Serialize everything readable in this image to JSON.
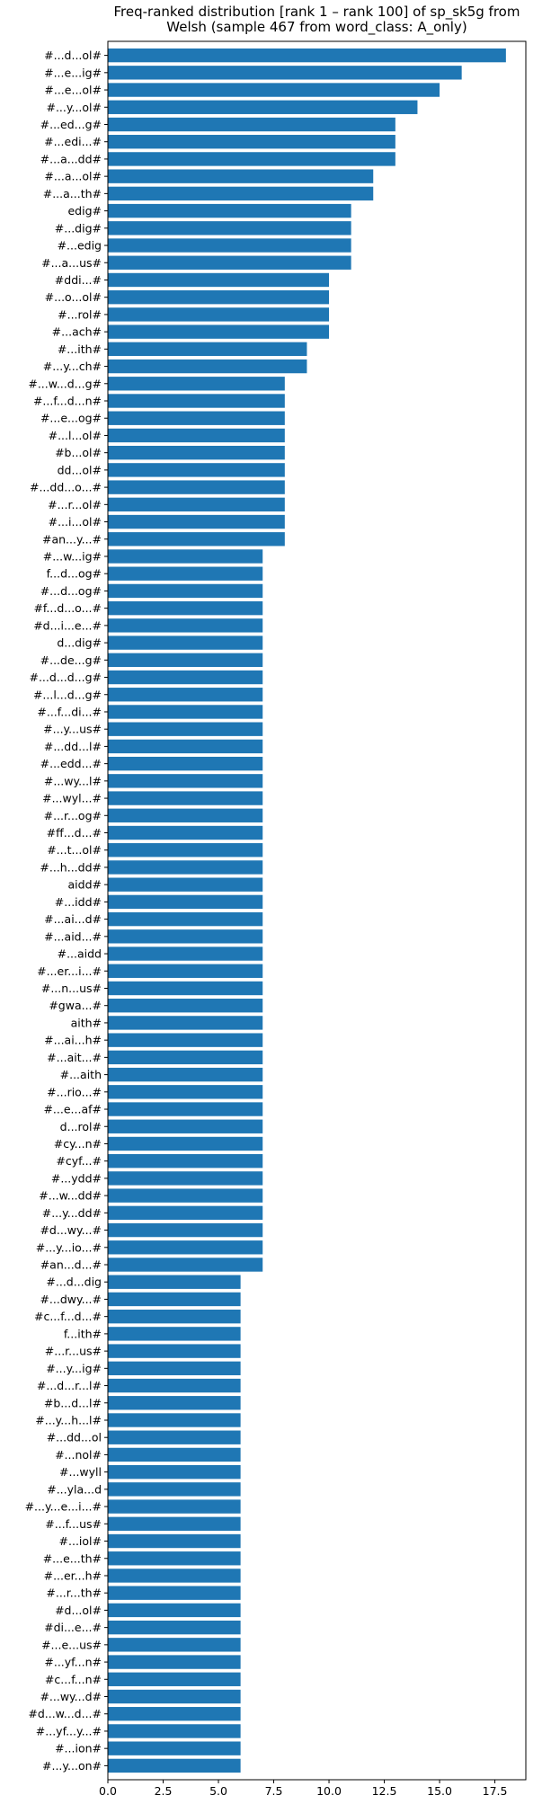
{
  "chart_data": {
    "type": "bar",
    "orientation": "horizontal",
    "title": "Freq-ranked distribution [rank 1 – rank 100] of sp_sk5g from Welsh (sample 467 from word_class: A_only)",
    "title_lines": [
      "Freq-ranked distribution [rank 1 – rank 100] of sp_sk5g from",
      "Welsh (sample 467 from word_class: A_only)"
    ],
    "xlabel": "",
    "ylabel": "",
    "xlim": [
      0,
      18.9
    ],
    "xticks": [
      0.0,
      2.5,
      5.0,
      7.5,
      10.0,
      12.5,
      15.0,
      17.5
    ],
    "xtick_labels": [
      "0.0",
      "2.5",
      "5.0",
      "7.5",
      "10.0",
      "12.5",
      "15.0",
      "17.5"
    ],
    "grid": false,
    "bar_color": "#1f77b4",
    "categories": [
      "#...d...ol#",
      "#...e...ig#",
      "#...e...ol#",
      "#...y...ol#",
      "#...ed...g#",
      "#...edi...#",
      "#...a...dd#",
      "#...a...ol#",
      "#...a...th#",
      "edig#",
      "#...dig#",
      "#...edig",
      "#...a...us#",
      "#ddi...#",
      "#...o...ol#",
      "#...rol#",
      "#...ach#",
      "#...ith#",
      "#...y...ch#",
      "#...w...d...g#",
      "#...f...d...n#",
      "#...e...og#",
      "#...l...ol#",
      "#b...ol#",
      "dd...ol#",
      "#...dd...o...#",
      "#...r...ol#",
      "#...i...ol#",
      "#an...y...#",
      "#...w...ig#",
      "f...d...og#",
      "#...d...og#",
      "#f...d...o...#",
      "#d...i...e...#",
      "d...dig#",
      "#...de...g#",
      "#...d...d...g#",
      "#...l...d...g#",
      "#...f...di...#",
      "#...y...us#",
      "#...dd...l#",
      "#...edd...#",
      "#...wy...l#",
      "#...wyl...#",
      "#...r...og#",
      "#ff...d...#",
      "#...t...ol#",
      "#...h...dd#",
      "aidd#",
      "#...idd#",
      "#...ai...d#",
      "#...aid...#",
      "#...aidd",
      "#...er...i...#",
      "#...n...us#",
      "#gwa...#",
      "aith#",
      "#...ai...h#",
      "#...ait...#",
      "#...aith",
      "#...rio...#",
      "#...e...af#",
      "d...rol#",
      "#cy...n#",
      "#cyf...#",
      "#...ydd#",
      "#...w...dd#",
      "#...y...dd#",
      "#d...wy...#",
      "#...y...io...#",
      "#an...d...#",
      "#...d...dig",
      "#...dwy...#",
      "#c...f...d...#",
      "f...ith#",
      "#...r...us#",
      "#...y...ig#",
      "#...d...r...l#",
      "#b...d...l#",
      "#...y...h...l#",
      "#...dd...ol",
      "#...nol#",
      "#...wyll",
      "#...yla...d",
      "#...y...e...i...#",
      "#...f...us#",
      "#...iol#",
      "#...e...th#",
      "#...er...h#",
      "#...r...th#",
      "#d...ol#",
      "#di...e...#",
      "#...e...us#",
      "#...yf...n#",
      "#c...f...n#",
      "#...wy...d#",
      "#d...w...d...#",
      "#...yf...y...#",
      "#...ion#",
      "#...y...on#"
    ],
    "values": [
      18,
      16,
      15,
      14,
      13,
      13,
      13,
      12,
      12,
      11,
      11,
      11,
      11,
      10,
      10,
      10,
      10,
      9,
      9,
      8,
      8,
      8,
      8,
      8,
      8,
      8,
      8,
      8,
      8,
      7,
      7,
      7,
      7,
      7,
      7,
      7,
      7,
      7,
      7,
      7,
      7,
      7,
      7,
      7,
      7,
      7,
      7,
      7,
      7,
      7,
      7,
      7,
      7,
      7,
      7,
      7,
      7,
      7,
      7,
      7,
      7,
      7,
      7,
      7,
      7,
      7,
      7,
      7,
      7,
      7,
      7,
      6,
      6,
      6,
      6,
      6,
      6,
      6,
      6,
      6,
      6,
      6,
      6,
      6,
      6,
      6,
      6,
      6,
      6,
      6,
      6,
      6,
      6,
      6,
      6,
      6,
      6,
      6,
      6,
      6
    ]
  }
}
